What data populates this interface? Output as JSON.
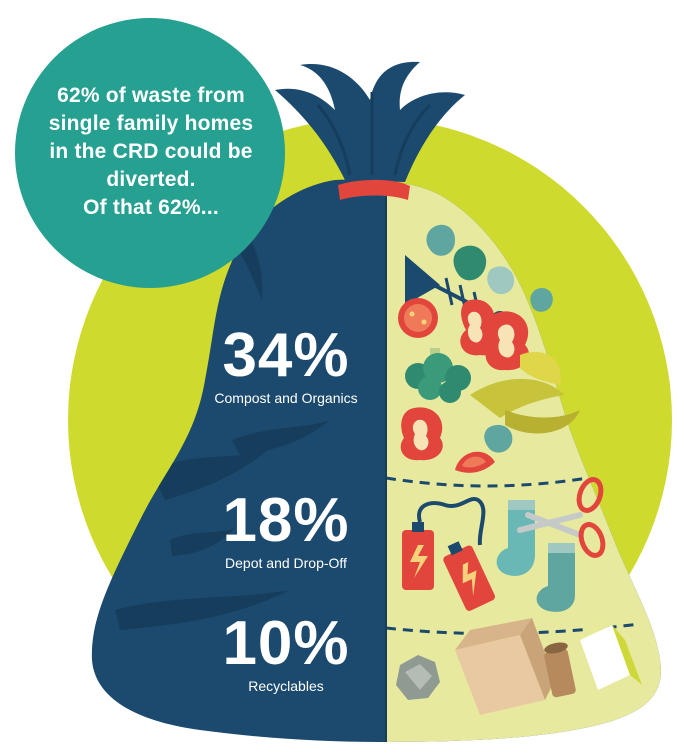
{
  "bubble": {
    "lines": [
      "62% of waste from",
      "single family homes",
      "in the CRD could be",
      "diverted.",
      "Of that 62%..."
    ]
  },
  "stats": [
    {
      "percent": "34%",
      "label": "Compost and Organics"
    },
    {
      "percent": "18%",
      "label": "Depot and Drop-Off"
    },
    {
      "percent": "10%",
      "label": "Recyclables"
    }
  ],
  "colors": {
    "background_circle": "#cfda2f",
    "bubble": "#26a090",
    "bag": "#1b4a6e",
    "bag_shadow": "#163d5c",
    "bag_interior": "#e7ea9e",
    "tie": "#e2453c"
  },
  "icons": [
    "fish-bone-icon",
    "apple-core-icon",
    "tomato-slice-icon",
    "broccoli-icon",
    "banana-peel-icon",
    "leaf-icon",
    "battery-icon",
    "sock-icon",
    "scissors-icon",
    "cardboard-box-icon",
    "crumpled-paper-icon",
    "paper-roll-icon",
    "milk-carton-icon"
  ]
}
